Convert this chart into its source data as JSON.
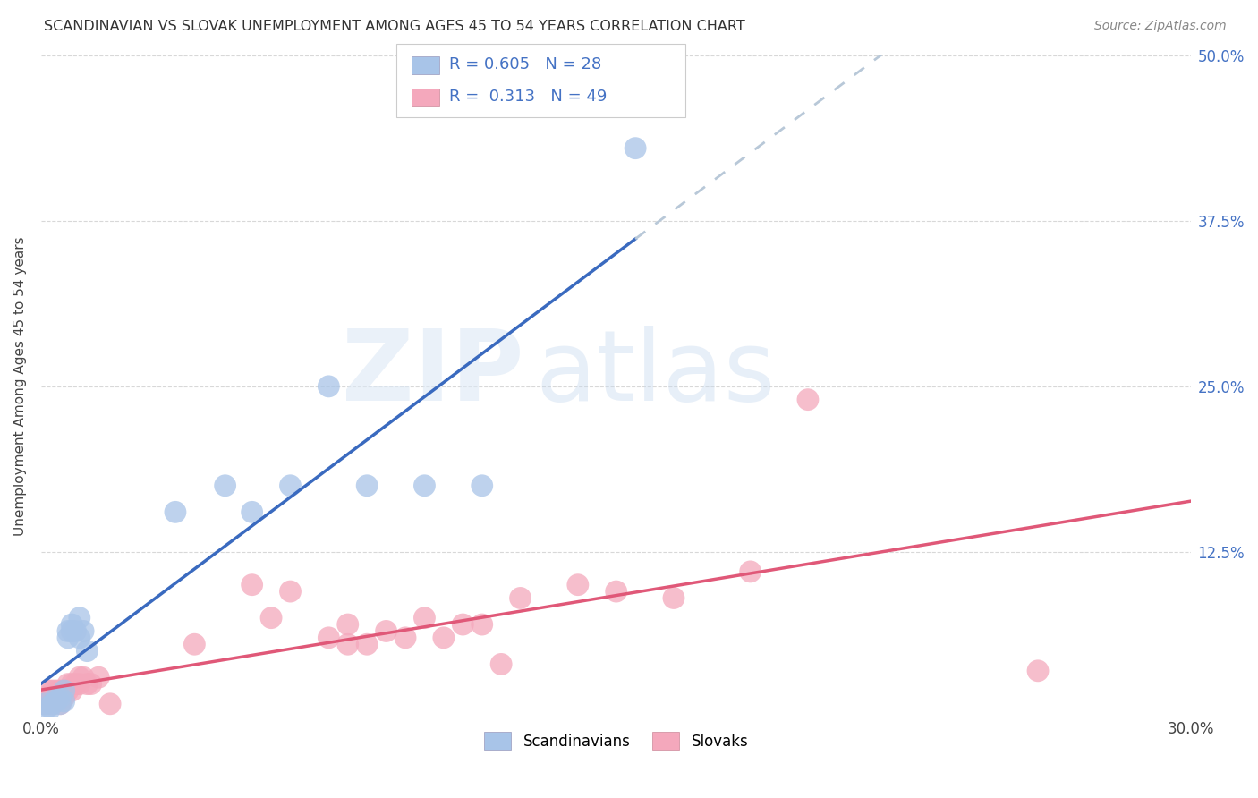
{
  "title": "SCANDINAVIAN VS SLOVAK UNEMPLOYMENT AMONG AGES 45 TO 54 YEARS CORRELATION CHART",
  "source": "Source: ZipAtlas.com",
  "ylabel": "Unemployment Among Ages 45 to 54 years",
  "xlim": [
    0,
    0.3
  ],
  "ylim": [
    0,
    0.5
  ],
  "scandinavian_color": "#a8c4e8",
  "slovak_color": "#f4a8bc",
  "scandinavian_line_color": "#3a6abf",
  "slovak_line_color": "#e05878",
  "dashed_line_color": "#b8c8d8",
  "R_scandinavian": 0.605,
  "N_scandinavian": 28,
  "R_slovak": 0.313,
  "N_slovak": 49,
  "scandinavian_x": [
    0.001,
    0.002,
    0.002,
    0.003,
    0.004,
    0.004,
    0.005,
    0.005,
    0.006,
    0.006,
    0.007,
    0.007,
    0.008,
    0.008,
    0.009,
    0.01,
    0.01,
    0.011,
    0.012,
    0.035,
    0.048,
    0.055,
    0.065,
    0.075,
    0.085,
    0.1,
    0.115,
    0.155
  ],
  "scandinavian_y": [
    0.01,
    0.005,
    0.008,
    0.01,
    0.012,
    0.015,
    0.01,
    0.015,
    0.012,
    0.02,
    0.06,
    0.065,
    0.065,
    0.07,
    0.065,
    0.075,
    0.06,
    0.065,
    0.05,
    0.155,
    0.175,
    0.155,
    0.175,
    0.25,
    0.175,
    0.175,
    0.175,
    0.43
  ],
  "slovak_x": [
    0.001,
    0.001,
    0.002,
    0.002,
    0.002,
    0.003,
    0.003,
    0.003,
    0.004,
    0.004,
    0.005,
    0.005,
    0.005,
    0.006,
    0.006,
    0.007,
    0.007,
    0.008,
    0.008,
    0.009,
    0.01,
    0.01,
    0.011,
    0.012,
    0.013,
    0.015,
    0.018,
    0.04,
    0.055,
    0.06,
    0.065,
    0.075,
    0.08,
    0.08,
    0.085,
    0.09,
    0.095,
    0.1,
    0.105,
    0.11,
    0.115,
    0.12,
    0.125,
    0.14,
    0.15,
    0.165,
    0.185,
    0.2,
    0.26
  ],
  "slovak_y": [
    0.01,
    0.015,
    0.01,
    0.015,
    0.02,
    0.01,
    0.015,
    0.02,
    0.015,
    0.02,
    0.01,
    0.015,
    0.02,
    0.015,
    0.02,
    0.02,
    0.025,
    0.02,
    0.025,
    0.025,
    0.025,
    0.03,
    0.03,
    0.025,
    0.025,
    0.03,
    0.01,
    0.055,
    0.1,
    0.075,
    0.095,
    0.06,
    0.055,
    0.07,
    0.055,
    0.065,
    0.06,
    0.075,
    0.06,
    0.07,
    0.07,
    0.04,
    0.09,
    0.1,
    0.095,
    0.09,
    0.11,
    0.24,
    0.035
  ],
  "background_color": "#ffffff",
  "grid_color": "#d8d8d8"
}
